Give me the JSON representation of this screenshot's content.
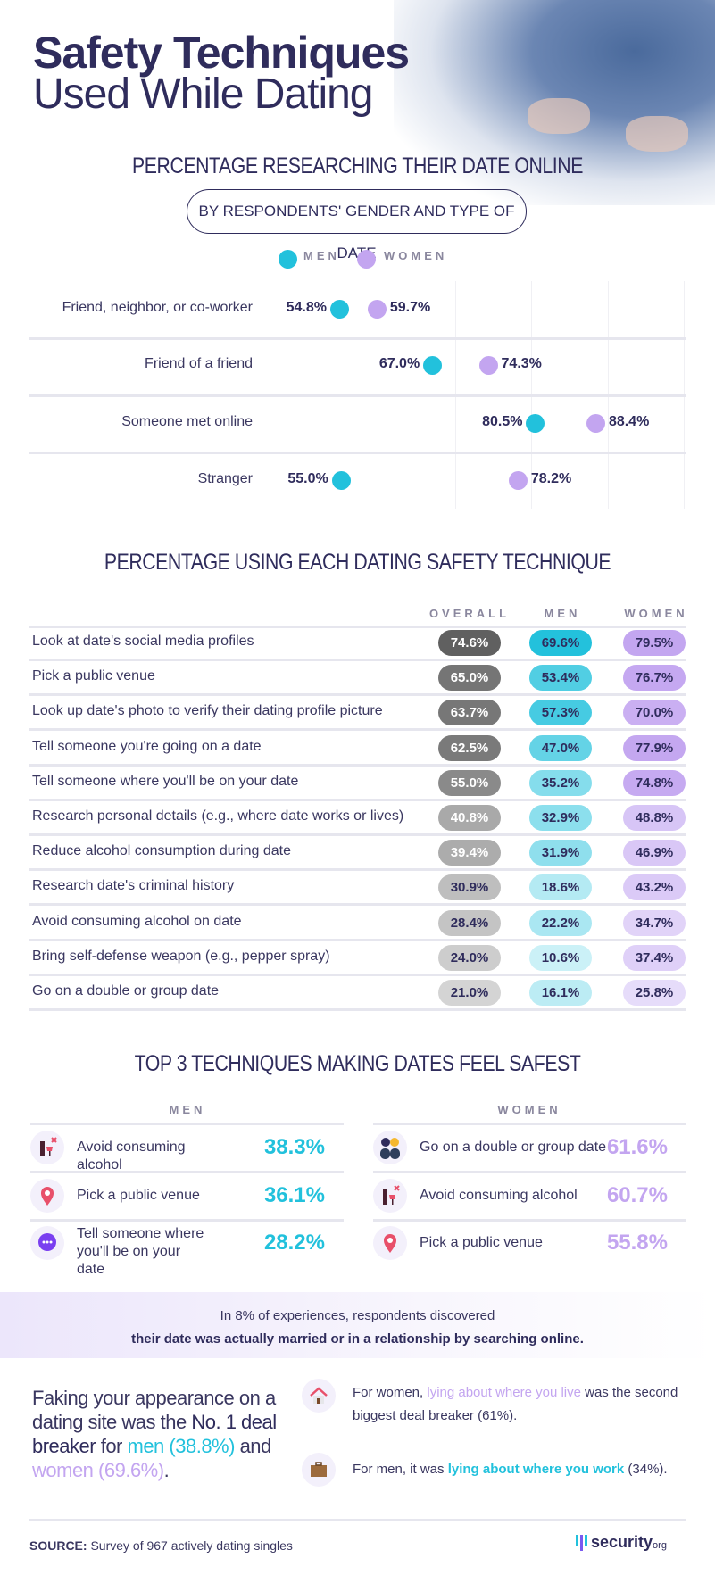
{
  "header": {
    "title_line1": "Safety Techniques",
    "title_line2": "Used While Dating"
  },
  "colors": {
    "navy": "#2f2c5c",
    "men": "#22c1dc",
    "women": "#c3a5f0",
    "overall": "#5f5f5f"
  },
  "section1": {
    "heading": "PERCENTAGE RESEARCHING THEIR DATE ONLINE",
    "subheading": "BY RESPONDENTS' GENDER AND TYPE OF DATE",
    "legend": {
      "men": "MEN",
      "women": "WOMEN"
    }
  },
  "chart_data": {
    "type": "scatter",
    "title": "PERCENTAGE RESEARCHING THEIR DATE ONLINE",
    "subtitle": "BY RESPONDENTS' GENDER AND TYPE OF DATE",
    "categories": [
      "Friend, neighbor, or co-worker",
      "Friend of a friend",
      "Someone met online",
      "Stranger"
    ],
    "series": [
      {
        "name": "MEN",
        "values": [
          54.8,
          67.0,
          80.5,
          55.0
        ],
        "labels": [
          "54.8%",
          "67.0%",
          "80.5%",
          "55.0%"
        ]
      },
      {
        "name": "WOMEN",
        "values": [
          59.7,
          74.3,
          88.4,
          78.2
        ],
        "labels": [
          "59.7%",
          "74.3%",
          "88.4%",
          "78.2%"
        ]
      }
    ],
    "xlim": [
      50,
      100
    ],
    "grid": true,
    "legend": "top"
  },
  "section2": {
    "heading": "PERCENTAGE USING EACH DATING SAFETY TECHNIQUE",
    "columns": [
      "OVERALL",
      "MEN",
      "WOMEN"
    ],
    "rows": [
      {
        "label": "Look at date's social media profiles",
        "overall": "74.6%",
        "men": "69.6%",
        "women": "79.5%"
      },
      {
        "label": "Pick a public venue",
        "overall": "65.0%",
        "men": "53.4%",
        "women": "76.7%"
      },
      {
        "label": "Look up date's photo to verify their dating profile picture",
        "overall": "63.7%",
        "men": "57.3%",
        "women": "70.0%"
      },
      {
        "label": "Tell someone you're going on a date",
        "overall": "62.5%",
        "men": "47.0%",
        "women": "77.9%"
      },
      {
        "label": "Tell someone where you'll be on your date",
        "overall": "55.0%",
        "men": "35.2%",
        "women": "74.8%"
      },
      {
        "label": "Research personal details (e.g., where date works or lives)",
        "overall": "40.8%",
        "men": "32.9%",
        "women": "48.8%"
      },
      {
        "label": "Reduce alcohol consumption during date",
        "overall": "39.4%",
        "men": "31.9%",
        "women": "46.9%"
      },
      {
        "label": "Research date's criminal history",
        "overall": "30.9%",
        "men": "18.6%",
        "women": "43.2%"
      },
      {
        "label": "Avoid consuming alcohol on date",
        "overall": "28.4%",
        "men": "22.2%",
        "women": "34.7%"
      },
      {
        "label": "Bring self-defense weapon (e.g., pepper spray)",
        "overall": "24.0%",
        "men": "10.6%",
        "women": "37.4%"
      },
      {
        "label": "Go on a double or group date",
        "overall": "21.0%",
        "men": "16.1%",
        "women": "25.8%"
      }
    ]
  },
  "section3": {
    "heading": "TOP 3 TECHNIQUES MAKING DATES FEEL SAFEST",
    "men": {
      "header": "MEN",
      "items": [
        {
          "icon": "wine-no-icon",
          "label": "Avoid consuming alcohol",
          "value": "38.3%"
        },
        {
          "icon": "location-pin-icon",
          "label": "Pick a public venue",
          "value": "36.1%"
        },
        {
          "icon": "chat-bubble-icon",
          "label": "Tell someone where you'll be on your date",
          "value": "28.2%"
        }
      ]
    },
    "women": {
      "header": "WOMEN",
      "items": [
        {
          "icon": "group-people-icon",
          "label": "Go on a double or group date",
          "value": "61.6%"
        },
        {
          "icon": "wine-no-icon",
          "label": "Avoid consuming alcohol",
          "value": "60.7%"
        },
        {
          "icon": "location-pin-icon",
          "label": "Pick a public venue",
          "value": "55.8%"
        }
      ]
    }
  },
  "callout": {
    "line1": "In 8% of experiences, respondents discovered",
    "line2": "their date was actually married or in a relationship by searching online."
  },
  "dealbreaker": {
    "p1": "Faking your appearance on a dating site was the ",
    "p_bold": "No. 1 deal breaker",
    "p2": " for ",
    "p_men": "men (38.8%)",
    "p3": " and ",
    "p_women": "women (69.6%)",
    "p4": ".",
    "women_a": "For women, ",
    "women_hl": "lying about where you live",
    "women_b": " was the second biggest deal breaker (61%).",
    "men_a": "For men, it was ",
    "men_hl": "lying about where you work",
    "men_b": " (34%)."
  },
  "footer": {
    "source_label": "SOURCE:",
    "source_text": " Survey of 967 actively dating singles",
    "logo": "security",
    "logo_suffix": "org"
  }
}
